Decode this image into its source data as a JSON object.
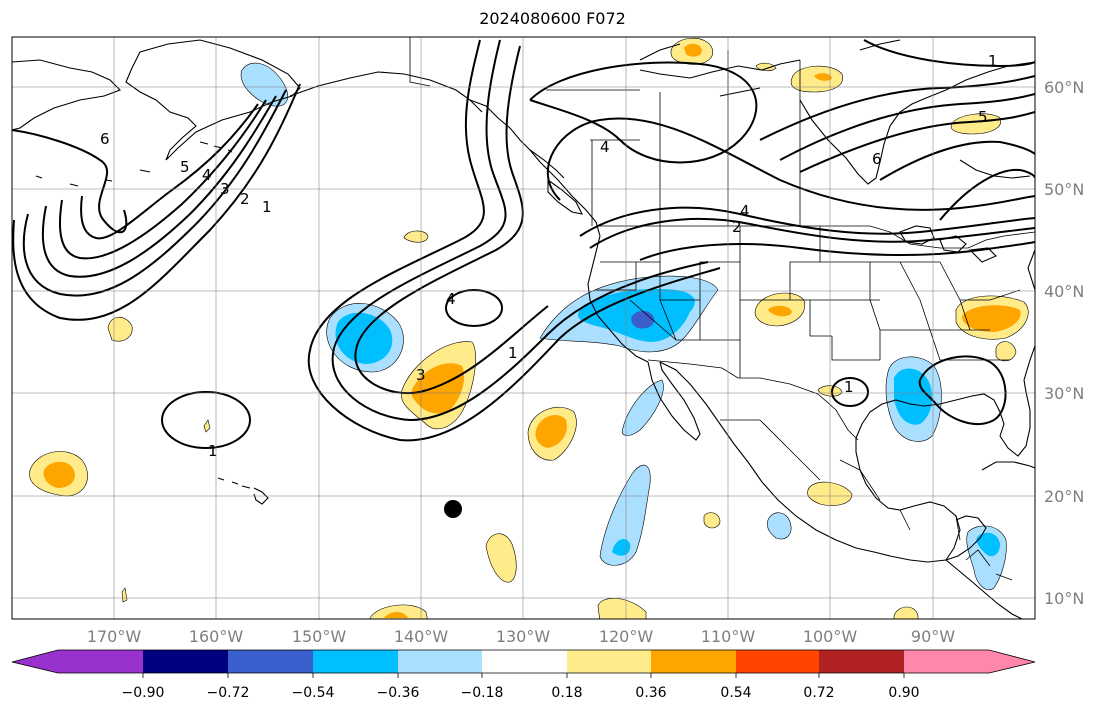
{
  "title": "2024080600 F072",
  "map": {
    "projection": "equirectangular",
    "lon_range": [
      -180,
      -80
    ],
    "lat_range": [
      8,
      65
    ],
    "latitude_labels": [
      "60°N",
      "50°N",
      "40°N",
      "30°N",
      "20°N",
      "10°N"
    ],
    "longitude_labels": [
      "170°W",
      "160°W",
      "150°W",
      "140°W",
      "130°W",
      "120°W",
      "110°W",
      "100°W",
      "90°W"
    ],
    "grid": true,
    "features": [
      "coastlines",
      "country-borders",
      "us-state-borders",
      "canadian-province-borders"
    ],
    "marker": {
      "name": "storm-position-dot",
      "lon": -137,
      "lat": 18.7,
      "color": "#000000"
    },
    "contour_labels": [
      "6",
      "5",
      "4",
      "3",
      "2",
      "1",
      "4",
      "3",
      "1",
      "1",
      "1",
      "4",
      "2",
      "4",
      "6",
      "5",
      "1"
    ],
    "contour_color": "#000000",
    "colors": {
      "neg_0_18_to_0_36": "#aadfff",
      "neg_0_36_to_0_54": "#00bfff",
      "neg_0_54_to_0_72": "#3a5fcd",
      "pos_0_18_to_0_36": "#ffeb8a",
      "pos_0_36_to_0_54": "#ffa500"
    }
  },
  "colorbar": {
    "orientation": "horizontal",
    "extend": "both",
    "tick_labels": [
      "−0.90",
      "−0.72",
      "−0.54",
      "−0.36",
      "−0.18",
      "0.18",
      "0.36",
      "0.54",
      "0.72",
      "0.90"
    ],
    "colors": [
      "#9932cc",
      "#000080",
      "#3a5fcd",
      "#00bfff",
      "#aadfff",
      "#ffffff",
      "#ffeb8a",
      "#ffa500",
      "#ff4500",
      "#b22222",
      "#ff88aa",
      "#ff88aa"
    ]
  }
}
